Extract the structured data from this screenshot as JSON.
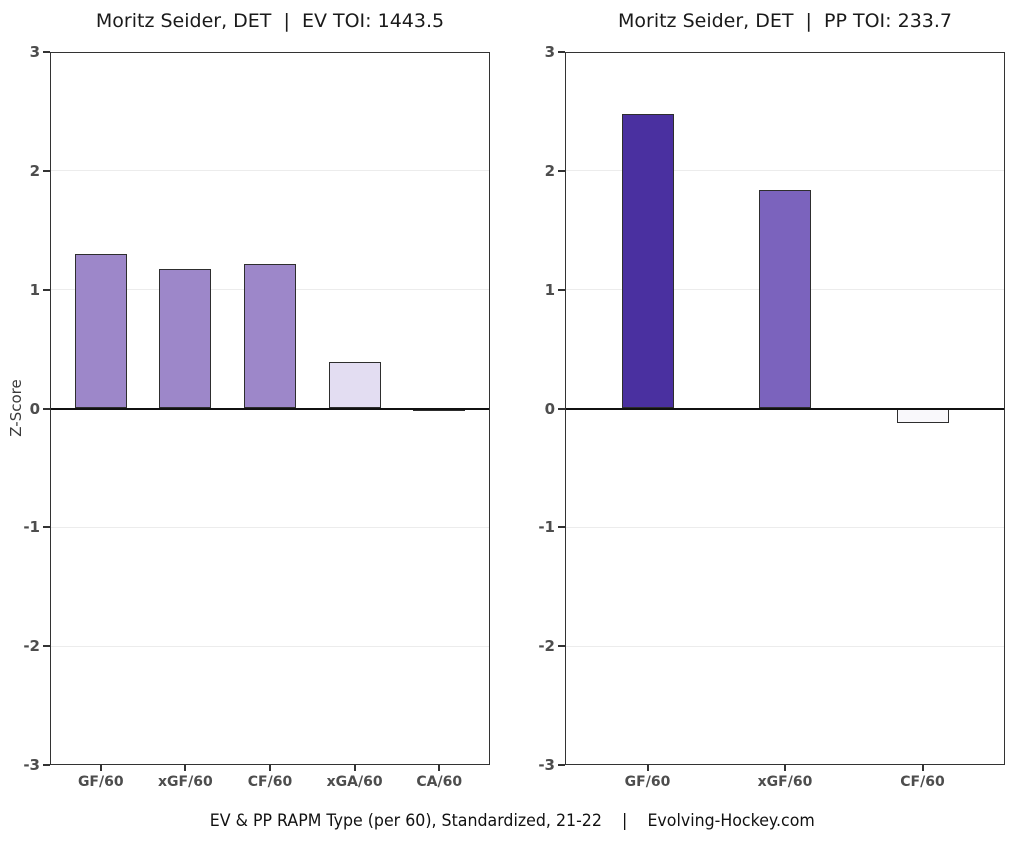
{
  "axis": {
    "ylabel": "Z-Score",
    "ticks": [
      3,
      2,
      1,
      0,
      -1,
      -2,
      -3
    ],
    "grid_values": [
      2,
      1,
      -1,
      -2
    ],
    "ylim": [
      -3,
      3
    ],
    "grid_color": "#ececec",
    "zero_line_color": "#111111",
    "panel_border_color": "#333333",
    "tick_label_color": "#4d4d4d",
    "title_color": "#1a1a1a"
  },
  "chart_data": [
    {
      "id": "ev",
      "type": "bar",
      "title": "Moritz Seider, DET  |  EV TOI: 1443.5",
      "categories": [
        "GF/60",
        "xGF/60",
        "CF/60",
        "xGA/60",
        "CA/60"
      ],
      "values": [
        1.3,
        1.17,
        1.22,
        0.39,
        -0.02
      ],
      "bar_colors": [
        "#9d87c9",
        "#9d87c9",
        "#9d87c9",
        "#e3ddf2",
        "#fbfafd"
      ],
      "xlabel": "",
      "ylabel": "Z-Score",
      "ylim": [
        -3,
        3
      ],
      "grid": true,
      "legend_position": "none"
    },
    {
      "id": "pp",
      "type": "bar",
      "title": "Moritz Seider, DET  |  PP TOI: 233.7",
      "categories": [
        "GF/60",
        "xGF/60",
        "CF/60"
      ],
      "values": [
        2.48,
        1.84,
        -0.12
      ],
      "bar_colors": [
        "#4a30a0",
        "#7b63bd",
        "#f9f8fb"
      ],
      "xlabel": "",
      "ylabel": "",
      "ylim": [
        -3,
        3
      ],
      "grid": true,
      "legend_position": "none"
    }
  ],
  "caption": {
    "text": "EV & PP RAPM Type (per 60), Standardized, 21-22    |    Evolving-Hockey.com"
  }
}
